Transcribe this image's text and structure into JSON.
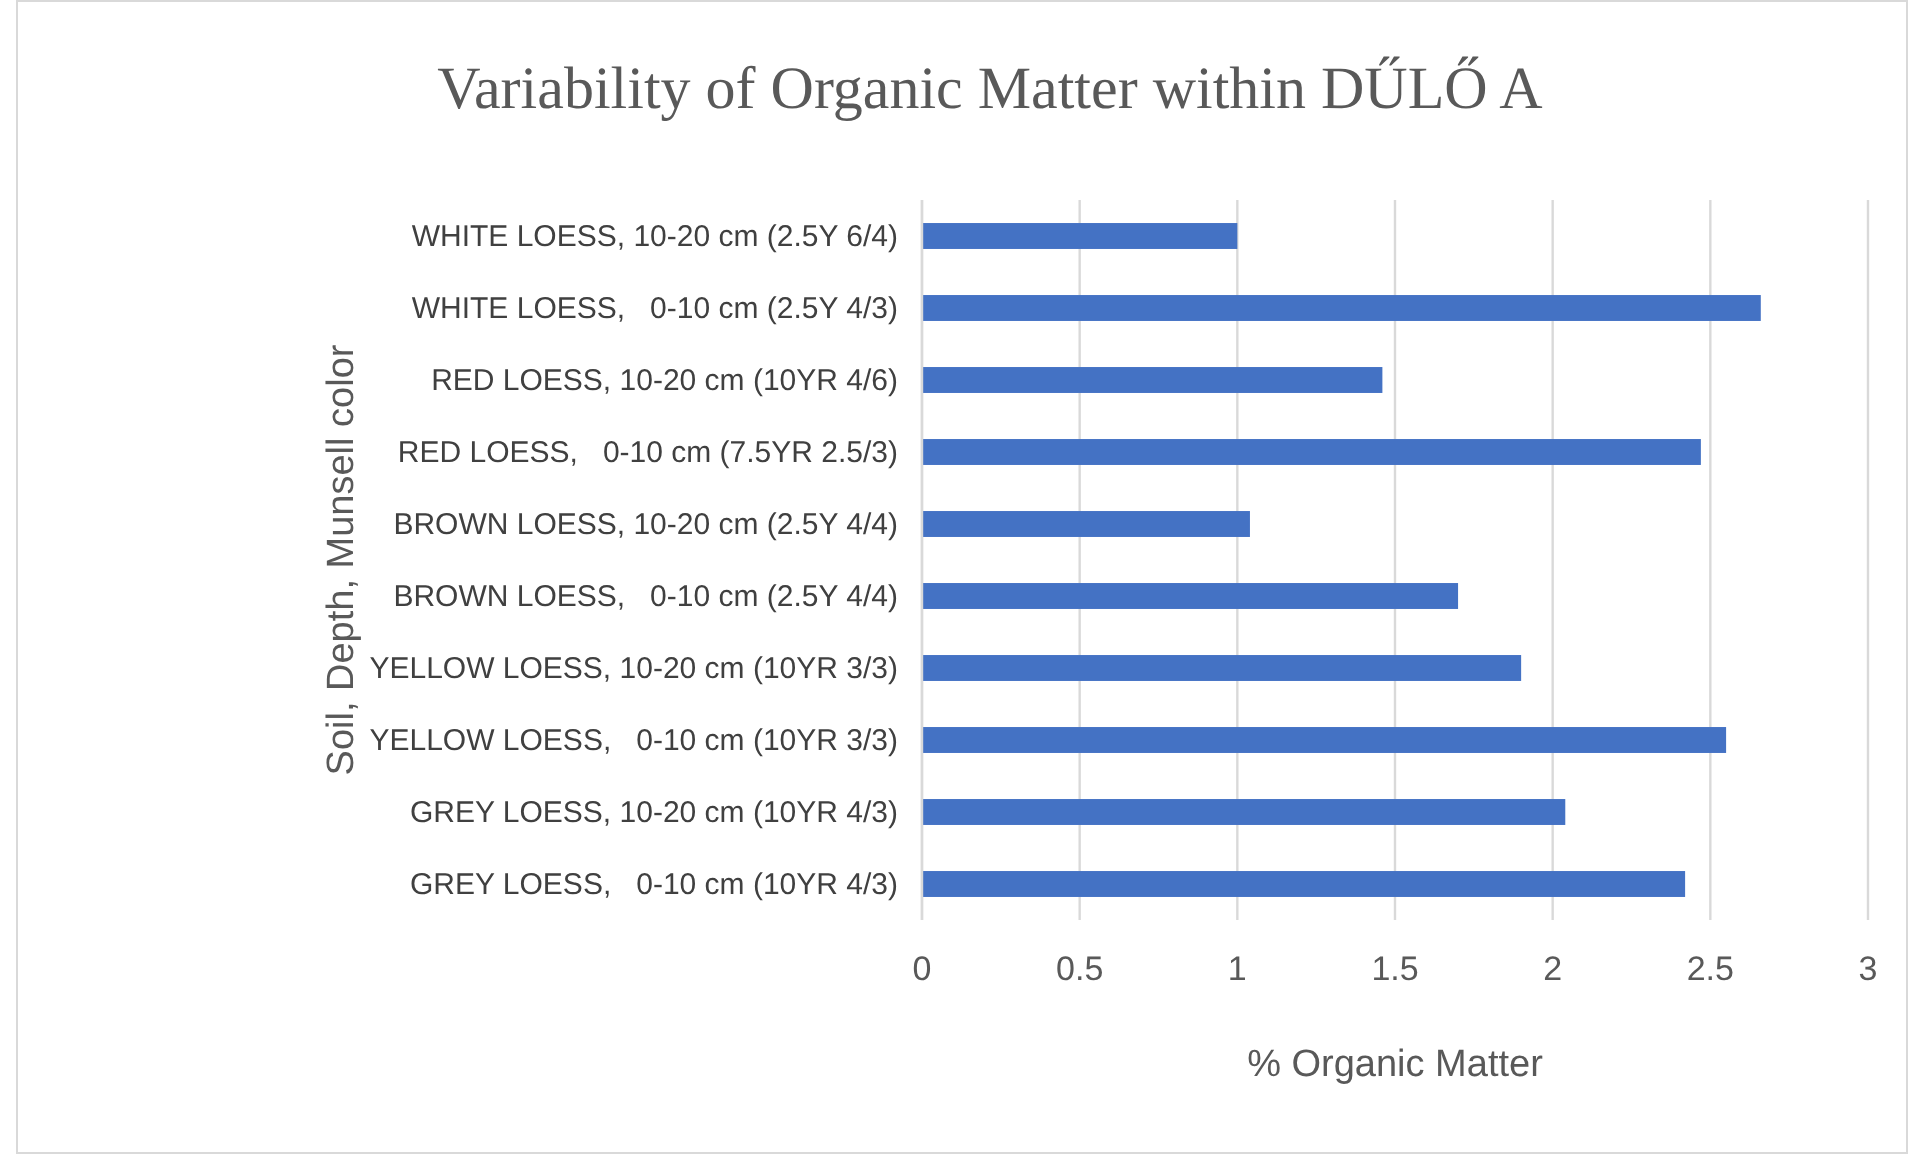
{
  "chart_data": {
    "type": "bar",
    "orientation": "horizontal",
    "title": "Variability of Organic Matter within DŰLŐ A",
    "xlabel": "% Organic Matter",
    "ylabel": "Soil, Depth, Munsell color",
    "categories": [
      "WHITE LOESS, 10-20 cm (2.5Y 6/4)",
      "WHITE LOESS,   0-10 cm (2.5Y 4/3)",
      "RED LOESS, 10-20 cm (10YR 4/6)",
      "RED LOESS,   0-10 cm (7.5YR 2.5/3)",
      "BROWN LOESS, 10-20 cm (2.5Y 4/4)",
      "BROWN LOESS,   0-10 cm (2.5Y 4/4)",
      "YELLOW LOESS, 10-20 cm (10YR 3/3)",
      "YELLOW LOESS,   0-10 cm (10YR 3/3)",
      "GREY LOESS, 10-20 cm (10YR 4/3)",
      "GREY LOESS,   0-10 cm (10YR 4/3)"
    ],
    "values": [
      1.0,
      2.66,
      1.46,
      2.47,
      1.04,
      1.7,
      1.9,
      2.55,
      2.04,
      2.42
    ],
    "color": "#4472c4",
    "xlim": [
      0,
      3
    ],
    "xticks": [
      0,
      0.5,
      1,
      1.5,
      2,
      2.5,
      3
    ],
    "grid": "x"
  }
}
